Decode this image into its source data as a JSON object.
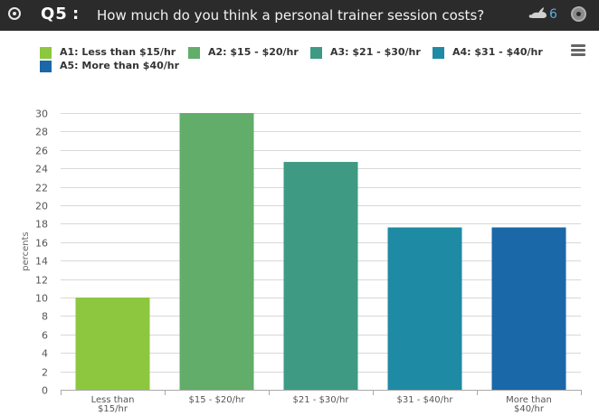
{
  "header": {
    "question_label": "Q5",
    "separator": ":",
    "title": "How much do you think a personal trainer session costs?",
    "respondent_count": "6",
    "icons": [
      "radio-icon",
      "rabbit-icon",
      "disc-icon"
    ]
  },
  "legend": [
    {
      "label": "A1: Less than $15/hr",
      "color": "#8dc63f"
    },
    {
      "label": "A2: $15 - $20/hr",
      "color": "#62ad6a"
    },
    {
      "label": "A3: $21 - $30/hr",
      "color": "#3e9a83"
    },
    {
      "label": "A4: $31 - $40/hr",
      "color": "#1f8aa3"
    },
    {
      "label": "A5: More than $40/hr",
      "color": "#1a68a8"
    }
  ],
  "chart_data": {
    "type": "bar",
    "categories": [
      [
        "Less than",
        "$15/hr"
      ],
      [
        "$15 - $20/hr"
      ],
      [
        "$21 - $30/hr"
      ],
      [
        "$31 - $40/hr"
      ],
      [
        "More than",
        "$40/hr"
      ]
    ],
    "values": [
      10,
      30,
      24.7,
      17.6,
      17.6
    ],
    "colors": [
      "#8dc63f",
      "#62ad6a",
      "#3e9a83",
      "#1f8aa3",
      "#1a68a8"
    ],
    "ylabel": "percents",
    "xlabel": "",
    "ylim": [
      0,
      30
    ],
    "yticks": [
      0,
      2,
      4,
      6,
      8,
      10,
      12,
      14,
      16,
      18,
      20,
      22,
      24,
      26,
      28,
      30
    ],
    "grid": true,
    "legend_position": "top"
  }
}
